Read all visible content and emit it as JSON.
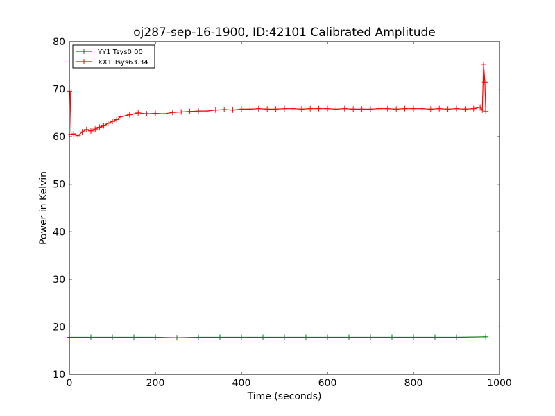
{
  "chart_data": {
    "type": "line",
    "title": "oj287-sep-16-1900, ID:42101 Calibrated Amplitude",
    "xlabel": "Time (seconds)",
    "ylabel": "Power in Kelvin",
    "xlim": [
      0,
      1000
    ],
    "ylim": [
      10,
      80
    ],
    "xticks": [
      "0",
      "200",
      "400",
      "600",
      "800",
      "1000"
    ],
    "yticks": [
      "10",
      "20",
      "30",
      "40",
      "50",
      "60",
      "70",
      "80"
    ],
    "grid": false,
    "legend_location": "top-left",
    "series": [
      {
        "name": "YY1 Tsys0.00",
        "color": "#008000",
        "marker": "+",
        "x": [
          0,
          50,
          100,
          150,
          200,
          250,
          300,
          350,
          400,
          450,
          500,
          550,
          600,
          650,
          700,
          750,
          800,
          850,
          900,
          968
        ],
        "y": [
          17.8,
          17.8,
          17.8,
          17.8,
          17.8,
          17.7,
          17.8,
          17.8,
          17.8,
          17.8,
          17.8,
          17.8,
          17.8,
          17.8,
          17.8,
          17.8,
          17.8,
          17.8,
          17.8,
          17.9
        ]
      },
      {
        "name": "XX1 Tsys63.34",
        "color": "#ff0000",
        "marker": "+",
        "x": [
          0,
          2,
          4,
          10,
          20,
          30,
          40,
          50,
          60,
          70,
          80,
          90,
          100,
          110,
          120,
          140,
          160,
          180,
          200,
          220,
          240,
          260,
          280,
          300,
          320,
          340,
          360,
          380,
          400,
          420,
          440,
          460,
          480,
          500,
          520,
          540,
          560,
          580,
          600,
          620,
          640,
          660,
          680,
          700,
          720,
          740,
          760,
          780,
          800,
          820,
          840,
          860,
          880,
          900,
          920,
          940,
          955,
          960,
          963,
          966,
          968
        ],
        "y": [
          69.6,
          69.0,
          60.5,
          60.6,
          60.2,
          61.0,
          61.5,
          61.2,
          61.6,
          62.0,
          62.3,
          62.8,
          63.2,
          63.6,
          64.2,
          64.6,
          65.0,
          64.8,
          64.9,
          64.8,
          65.1,
          65.2,
          65.3,
          65.4,
          65.4,
          65.6,
          65.7,
          65.6,
          65.8,
          65.8,
          65.9,
          65.8,
          65.8,
          65.9,
          65.9,
          65.8,
          65.9,
          65.9,
          65.9,
          65.8,
          65.9,
          65.8,
          65.8,
          65.8,
          65.9,
          65.9,
          65.8,
          65.9,
          65.9,
          65.9,
          65.8,
          65.9,
          65.8,
          65.9,
          65.8,
          65.9,
          66.2,
          65.6,
          75.2,
          71.5,
          65.3
        ]
      }
    ]
  }
}
